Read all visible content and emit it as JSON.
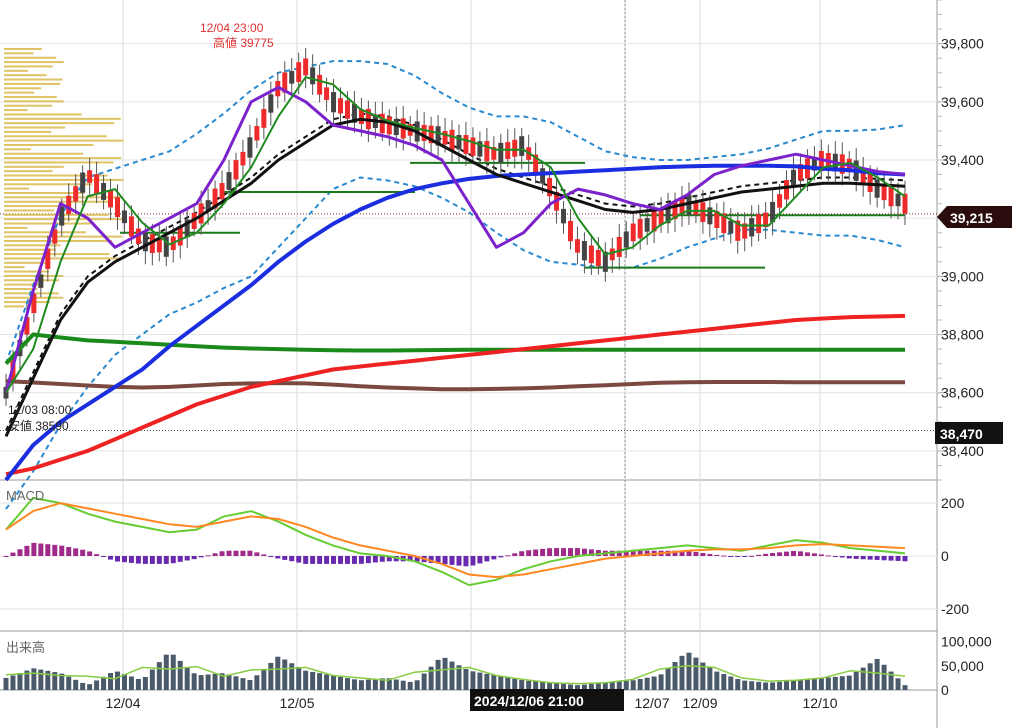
{
  "chart_data": [
    {
      "type": "candlestick",
      "panel": "price",
      "y_ticks": [
        38400,
        38600,
        38800,
        39000,
        39200,
        39400,
        39600,
        39800
      ],
      "y_tick_labels": [
        "38,400",
        "38,600",
        "38,800",
        "39,000",
        "39,200",
        "39,400",
        "39,600",
        "39,800"
      ],
      "ylim": [
        38300,
        39950
      ],
      "x_labels": [
        "12/04",
        "12/05",
        "12/07",
        "12/09",
        "12/10"
      ],
      "crosshair_time": "2024/12/06 21:00",
      "current_price": 39215,
      "current_price_label": "39,215",
      "cursor_price_label": "38,470",
      "cursor_price": 38470,
      "high_annotation": {
        "time": "12/04 23:00",
        "label": "高値 39775",
        "value": 39775
      },
      "low_annotation": {
        "time": "12/03 08:00",
        "label": "安値 38590",
        "value": 38590
      },
      "grid": true,
      "series": [
        {
          "kind": "sma",
          "color": "#e0e0e0",
          "values": [
            38600,
            38900,
            39200,
            39350,
            39250,
            39120,
            39100,
            39200,
            39300,
            39450,
            39650,
            39720,
            39600,
            39550,
            39520,
            39500,
            39480,
            39450,
            39420,
            39450,
            39300,
            39100,
            39050,
            39150,
            39200,
            39250,
            39200,
            39150,
            39200,
            39350,
            39400,
            39380,
            39300,
            39250
          ]
        },
        {
          "kind": "green_line",
          "color": "#1a8a1a",
          "values": [
            38700,
            38800,
            38790,
            38780,
            38775,
            38770,
            38765,
            38760,
            38755,
            38752,
            38750,
            38748,
            38746,
            38745,
            38745,
            38746,
            38747,
            38748,
            38748,
            38748,
            38748,
            38748,
            38748,
            38748,
            38748,
            38748,
            38748,
            38748,
            38748,
            38748,
            38748,
            38748,
            38748,
            38748
          ]
        },
        {
          "kind": "brown_line",
          "color": "#7a4a40",
          "values": [
            38640,
            38635,
            38630,
            38625,
            38620,
            38618,
            38620,
            38625,
            38630,
            38632,
            38633,
            38632,
            38628,
            38622,
            38618,
            38615,
            38612,
            38612,
            38613,
            38615,
            38618,
            38622,
            38626,
            38630,
            38634,
            38636,
            38637,
            38637,
            38637,
            38636,
            38636,
            38636,
            38636,
            38636
          ]
        },
        {
          "kind": "red_line",
          "color": "#ee2222",
          "values": [
            38320,
            38340,
            38370,
            38400,
            38440,
            38480,
            38520,
            38560,
            38590,
            38620,
            38640,
            38660,
            38680,
            38690,
            38700,
            38710,
            38720,
            38730,
            38740,
            38750,
            38760,
            38770,
            38780,
            38790,
            38800,
            38810,
            38820,
            38830,
            38840,
            38850,
            38855,
            38860,
            38862,
            38864
          ]
        },
        {
          "kind": "blue_line",
          "color": "#1a2ee0",
          "values": [
            38300,
            38420,
            38500,
            38560,
            38620,
            38680,
            38760,
            38830,
            38900,
            38970,
            39050,
            39120,
            39180,
            39230,
            39270,
            39300,
            39320,
            39335,
            39345,
            39350,
            39355,
            39360,
            39365,
            39370,
            39375,
            39378,
            39380,
            39380,
            39380,
            39378,
            39370,
            39365,
            39355,
            39350
          ]
        },
        {
          "kind": "black_line",
          "color": "#111111",
          "values": [
            38450,
            38650,
            38850,
            38980,
            39050,
            39100,
            39150,
            39200,
            39260,
            39320,
            39400,
            39460,
            39520,
            39540,
            39530,
            39500,
            39450,
            39400,
            39350,
            39320,
            39290,
            39260,
            39230,
            39220,
            39230,
            39250,
            39270,
            39290,
            39300,
            39310,
            39320,
            39320,
            39315,
            39310
          ]
        },
        {
          "kind": "purple_line",
          "color": "#7b22cc",
          "values": [
            38600,
            38950,
            39250,
            39200,
            39100,
            39150,
            39200,
            39250,
            39400,
            39600,
            39650,
            39600,
            39520,
            39500,
            39480,
            39450,
            39400,
            39250,
            39100,
            39150,
            39250,
            39300,
            39280,
            39250,
            39230,
            39280,
            39350,
            39380,
            39400,
            39420,
            39400,
            39380,
            39360,
            39350
          ]
        }
      ]
    },
    {
      "type": "line",
      "panel": "macd",
      "panel_label": "MACD",
      "y_ticks": [
        200,
        0,
        -200
      ],
      "y_tick_labels": [
        "200",
        "0",
        "-200"
      ],
      "ylim": [
        -280,
        280
      ],
      "series": [
        {
          "kind": "macd",
          "color": "#66cc33",
          "values": [
            100,
            220,
            200,
            160,
            130,
            110,
            90,
            100,
            150,
            170,
            130,
            80,
            40,
            10,
            0,
            -20,
            -60,
            -110,
            -90,
            -50,
            -20,
            0,
            10,
            20,
            30,
            40,
            30,
            20,
            40,
            60,
            50,
            30,
            20,
            10
          ]
        },
        {
          "kind": "signal",
          "color": "#ff8822",
          "values": [
            100,
            170,
            200,
            180,
            160,
            140,
            120,
            110,
            130,
            150,
            140,
            110,
            70,
            40,
            20,
            0,
            -30,
            -70,
            -80,
            -70,
            -50,
            -30,
            -10,
            0,
            10,
            20,
            25,
            25,
            30,
            40,
            45,
            40,
            35,
            30
          ]
        },
        {
          "kind": "histogram",
          "values": [
            0,
            50,
            40,
            20,
            -20,
            -30,
            -30,
            -10,
            20,
            20,
            -10,
            -30,
            -30,
            -30,
            -20,
            -20,
            -30,
            -40,
            -10,
            20,
            30,
            30,
            20,
            20,
            20,
            20,
            5,
            -5,
            10,
            20,
            5,
            -10,
            -15,
            -20
          ]
        }
      ]
    },
    {
      "type": "bar",
      "panel": "volume",
      "panel_label": "出来高",
      "y_ticks": [
        100000,
        50000,
        0
      ],
      "y_tick_labels": [
        "100,000",
        "50,000",
        "0"
      ],
      "ylim": [
        0,
        120000
      ],
      "values": [
        25000,
        45000,
        35000,
        10000,
        40000,
        20000,
        80000,
        30000,
        35000,
        20000,
        70000,
        40000,
        30000,
        20000,
        25000,
        15000,
        70000,
        40000,
        30000,
        20000,
        15000,
        10000,
        15000,
        20000,
        30000,
        80000,
        40000,
        20000,
        15000,
        20000,
        25000,
        30000,
        65000,
        10000
      ]
    }
  ]
}
